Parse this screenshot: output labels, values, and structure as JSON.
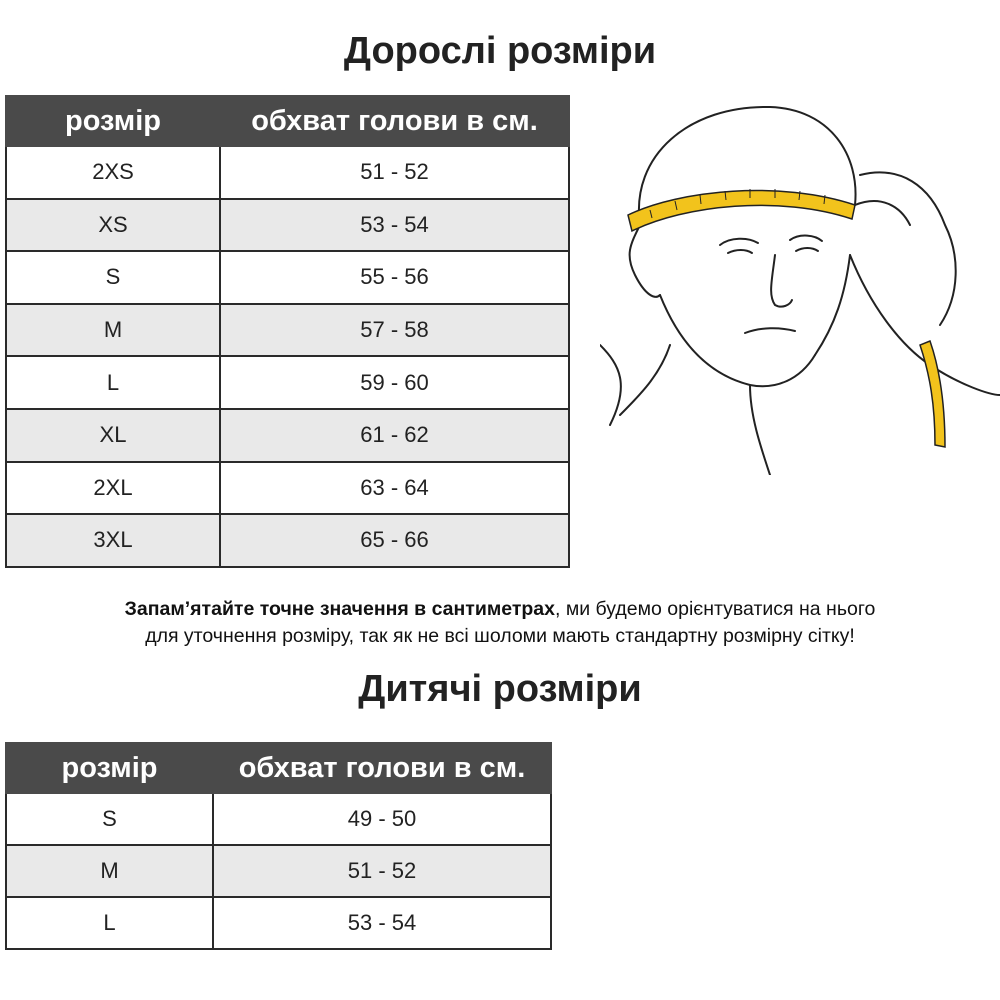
{
  "adult": {
    "title": "Дорослі розміри",
    "headers": [
      "розмір",
      "обхват голови в см."
    ],
    "rows": [
      [
        "2XS",
        "51 - 52"
      ],
      [
        "XS",
        "53 - 54"
      ],
      [
        "S",
        "55 - 56"
      ],
      [
        "M",
        "57 - 58"
      ],
      [
        "L",
        "59 - 60"
      ],
      [
        "XL",
        "61 - 62"
      ],
      [
        "2XL",
        "63 - 64"
      ],
      [
        "3XL",
        "65 - 66"
      ]
    ]
  },
  "note": {
    "bold": "Запам’ятайте точне значення в сантиметрах",
    "rest_line1": ", ми будемо орієнтуватися на нього",
    "line2": "для уточнення розміру, так як не всі шоломи мають стандартну розмірну сітку!"
  },
  "kids": {
    "title": "Дитячі розміри",
    "headers": [
      "розмір",
      "обхват голови в см."
    ],
    "rows": [
      [
        "S",
        "49 - 50"
      ],
      [
        "M",
        "51 - 52"
      ],
      [
        "L",
        "53 - 54"
      ]
    ]
  },
  "illustration": {
    "icon": "head-measuring-tape-illustration",
    "tape_color": "#f2c31c"
  },
  "colors": {
    "header_bg": "#4a4a4a",
    "alt_row": "#e9e9e9"
  }
}
